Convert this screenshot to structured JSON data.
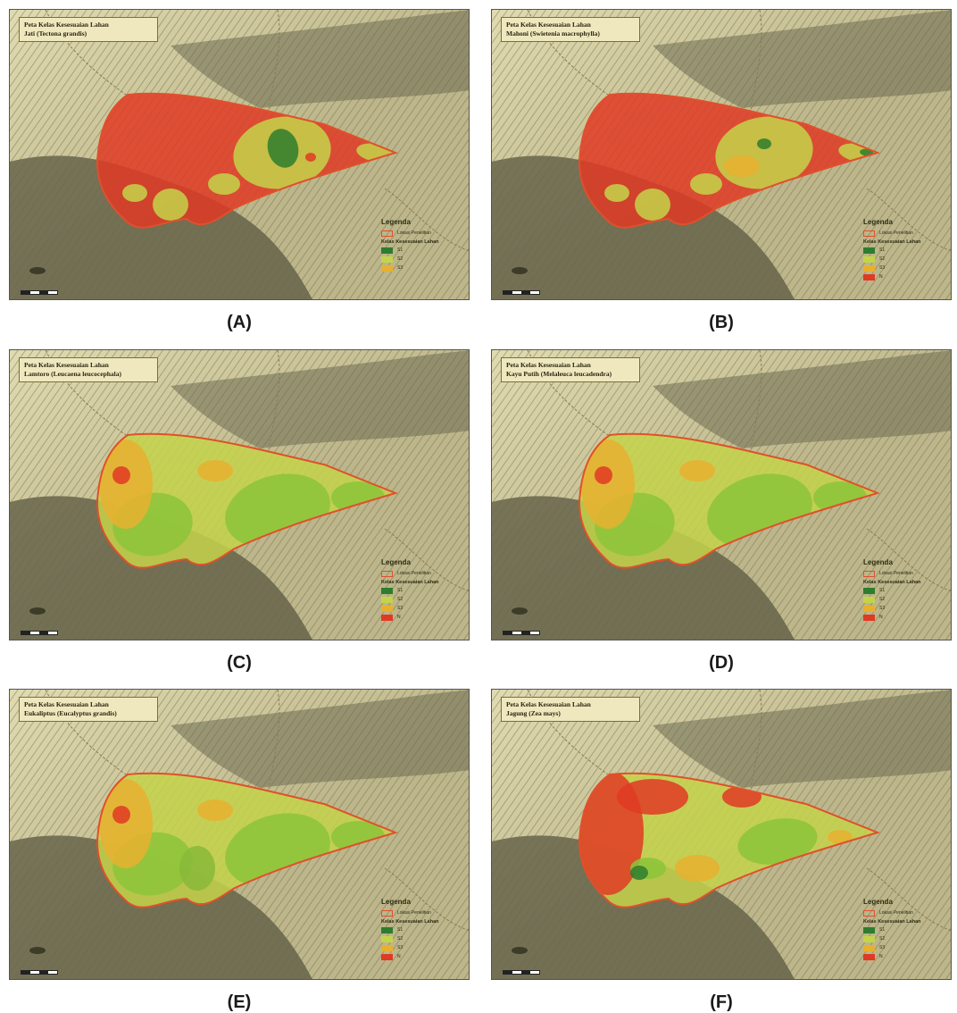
{
  "panels": [
    {
      "caption": "(A)",
      "title_line1": "Peta Kelas Kesesuaian Lahan",
      "title_line2": "Jati (Tectona grandis)",
      "scheme": "A",
      "legend": {
        "title": "Legenda",
        "boundary": "Lokasi Penelitian",
        "sub": "Kelas Kesesuaian Lahan",
        "classes": [
          "S1",
          "S2",
          "S3"
        ]
      }
    },
    {
      "caption": "(B)",
      "title_line1": "Peta Kelas Kesesuaian Lahan",
      "title_line2": "Mahoni (Swietenia macrophylla)",
      "scheme": "B",
      "legend": {
        "title": "Legenda",
        "boundary": "Lokasi Penelitian",
        "sub": "Kelas Kesesuaian Lahan",
        "classes": [
          "S1",
          "S2",
          "S3",
          "N"
        ]
      }
    },
    {
      "caption": "(C)",
      "title_line1": "Peta Kelas Kesesuaian Lahan",
      "title_line2": "Lamtoro (Leucaena leucocephala)",
      "scheme": "C",
      "legend": {
        "title": "Legenda",
        "boundary": "Lokasi Penelitian",
        "sub": "Kelas Kesesuaian Lahan",
        "classes": [
          "S1",
          "S2",
          "S3",
          "N"
        ]
      }
    },
    {
      "caption": "(D)",
      "title_line1": "Peta Kelas Kesesuaian Lahan",
      "title_line2": "Kayu Putih (Melaleuca leucadendra)",
      "scheme": "C",
      "legend": {
        "title": "Legenda",
        "boundary": "Lokasi Penelitian",
        "sub": "Kelas Kesesuaian Lahan",
        "classes": [
          "S1",
          "S2",
          "S3",
          "N"
        ]
      }
    },
    {
      "caption": "(E)",
      "title_line1": "Peta Kelas Kesesuaian Lahan",
      "title_line2": "Eukaliptus (Eucalyptus grandis)",
      "scheme": "E",
      "legend": {
        "title": "Legenda",
        "boundary": "Lokasi Penelitian",
        "sub": "Kelas Kesesuaian Lahan",
        "classes": [
          "S1",
          "S2",
          "S3",
          "N"
        ]
      }
    },
    {
      "caption": "(F)",
      "title_line1": "Peta Kelas Kesesuaian Lahan",
      "title_line2": "Jagung (Zea mays)",
      "scheme": "F",
      "legend": {
        "title": "Legenda",
        "boundary": "Lokasi Penelitian",
        "sub": "Kelas Kesesuaian Lahan",
        "classes": [
          "S1",
          "S2",
          "S3",
          "N"
        ]
      }
    }
  ],
  "colors": {
    "terrain": "#bdb68a",
    "terrain_light": "#e0dbb0",
    "terrain_dark": "#5a5740",
    "S1": "#2e7d2e",
    "S2": "#c4d44a",
    "S2_light": "#8cc43a",
    "S3": "#e8b030",
    "N": "#e03a24",
    "boundary": "#e0502b"
  }
}
